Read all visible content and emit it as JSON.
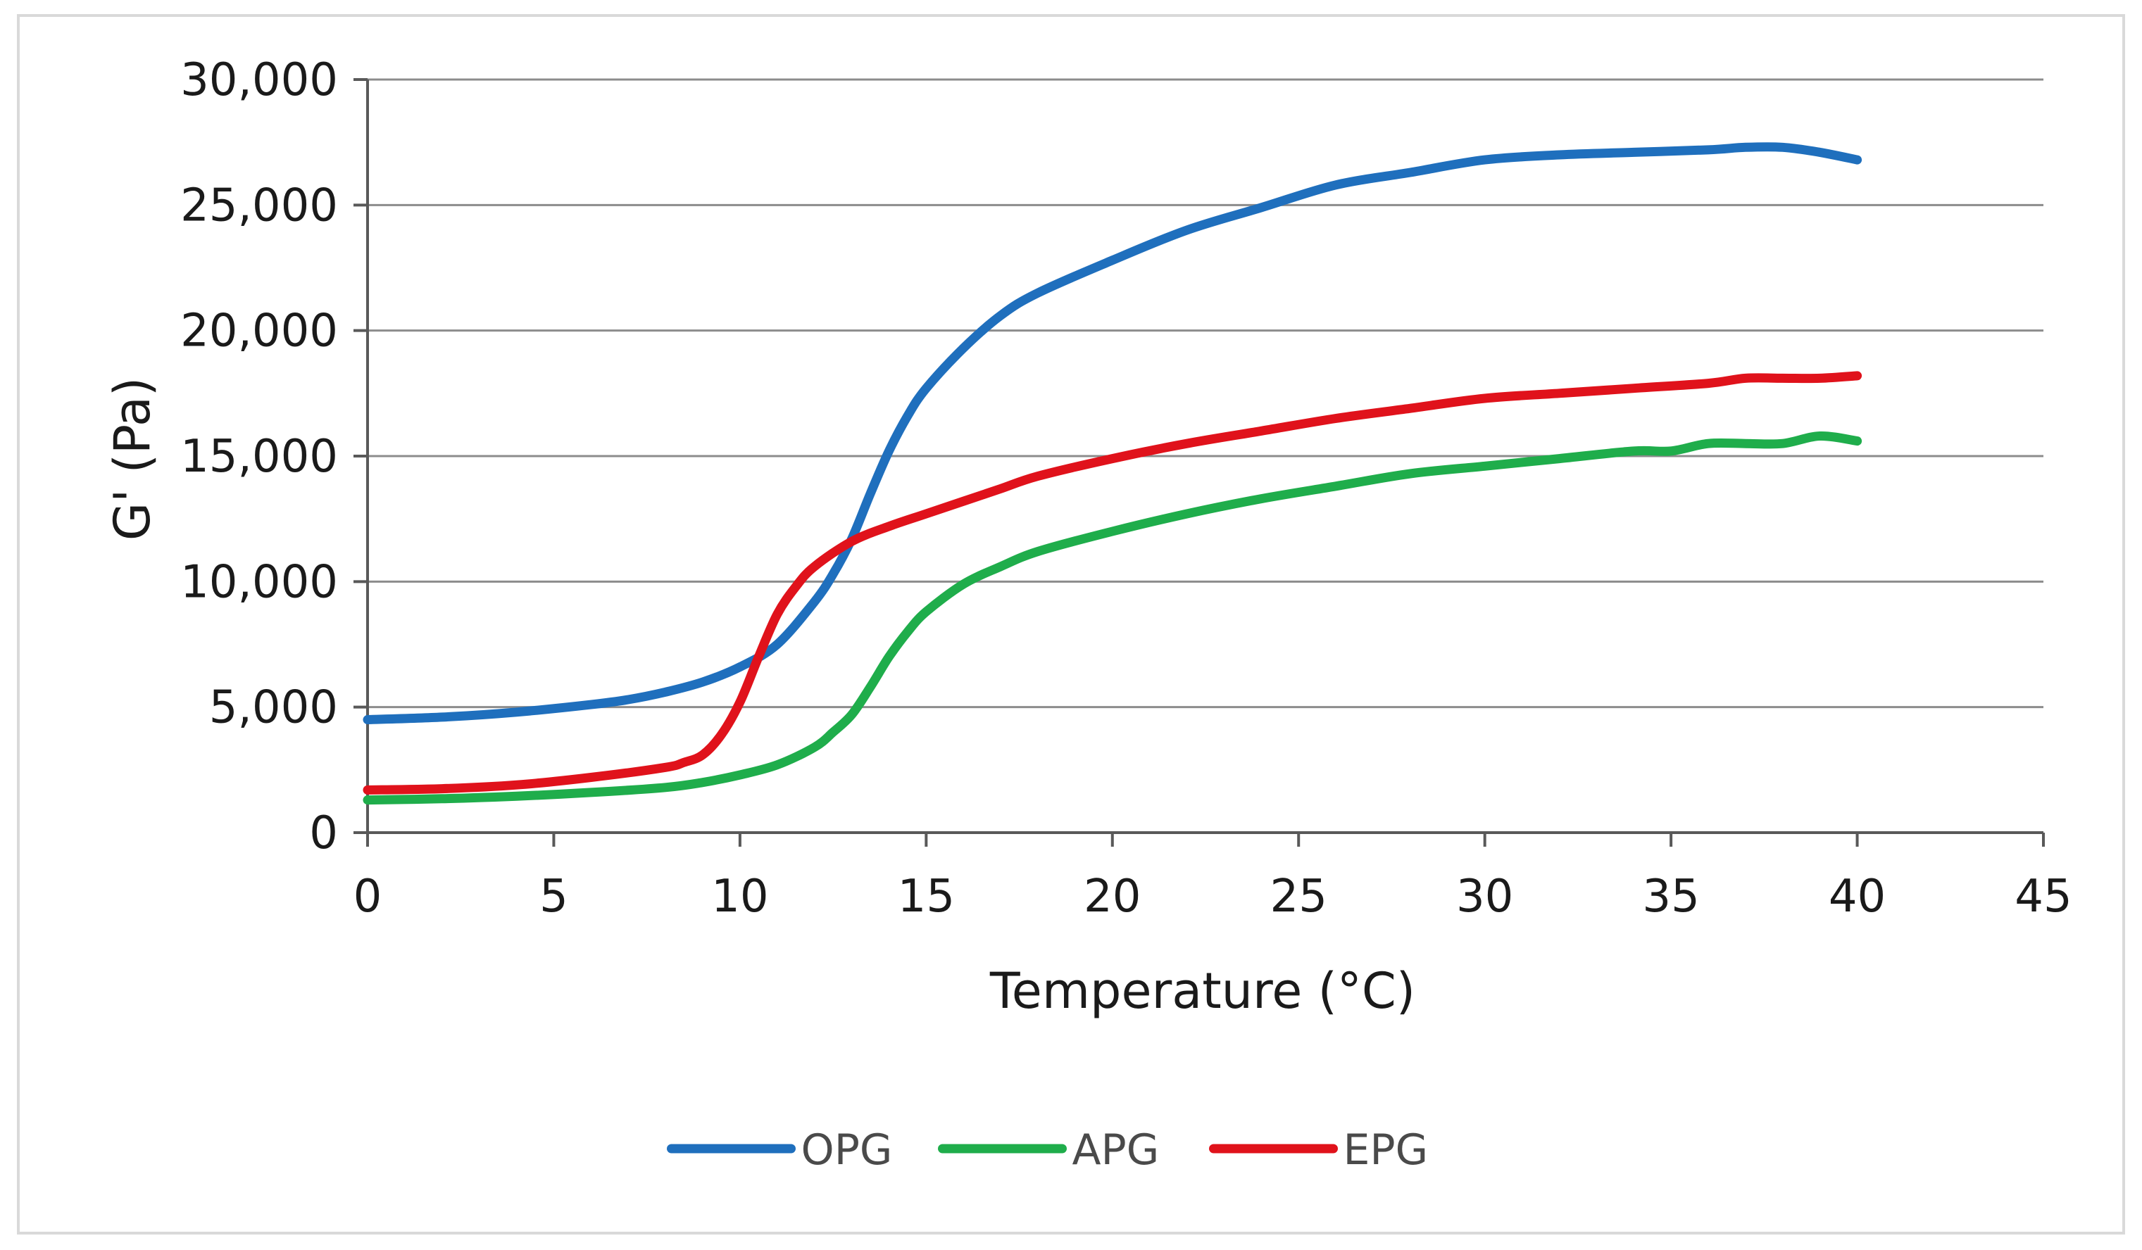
{
  "chart_data": {
    "type": "line",
    "title": "",
    "xlabel": "Temperature (°C)",
    "ylabel": "G' (Pa)",
    "xlim": [
      0,
      45
    ],
    "ylim": [
      0,
      30000
    ],
    "xticks": [
      0,
      5,
      10,
      15,
      20,
      25,
      30,
      35,
      40,
      45
    ],
    "xtick_labels": [
      "0",
      "5",
      "10",
      "15",
      "20",
      "25",
      "30",
      "35",
      "40",
      "45"
    ],
    "yticks": [
      0,
      5000,
      10000,
      15000,
      20000,
      25000,
      30000
    ],
    "ytick_labels": [
      "0",
      "5,000",
      "10,000",
      "15,000",
      "20,000",
      "25,000",
      "30,000"
    ],
    "grid": "horizontal",
    "legend": "bottom",
    "series": [
      {
        "name": "OPG",
        "color": "#1f6fbd",
        "x": [
          0,
          2,
          4,
          6,
          7,
          8,
          9,
          10,
          11,
          12,
          12.5,
          13,
          13.5,
          14,
          14.5,
          15,
          16,
          17,
          18,
          20,
          22,
          24,
          26,
          28,
          30,
          32,
          34,
          36,
          37,
          38,
          39,
          40
        ],
        "y": [
          4500,
          4600,
          4800,
          5100,
          5300,
          5600,
          6000,
          6600,
          7500,
          9200,
          10300,
          11700,
          13500,
          15200,
          16600,
          17700,
          19300,
          20600,
          21500,
          22800,
          24000,
          24900,
          25800,
          26300,
          26800,
          27000,
          27100,
          27200,
          27300,
          27300,
          27100,
          26800
        ]
      },
      {
        "name": "APG",
        "color": "#1fad4b",
        "x": [
          0,
          2,
          4,
          6,
          8,
          9,
          10,
          11,
          12,
          12.5,
          13,
          13.5,
          14,
          14.5,
          15,
          16,
          17,
          18,
          20,
          22,
          24,
          26,
          28,
          30,
          32,
          34,
          35,
          36,
          37,
          38,
          39,
          40
        ],
        "y": [
          1300,
          1350,
          1450,
          1600,
          1800,
          2000,
          2300,
          2700,
          3400,
          4000,
          4700,
          5800,
          7000,
          8000,
          8800,
          9900,
          10600,
          11200,
          12000,
          12700,
          13300,
          13800,
          14300,
          14600,
          14900,
          15200,
          15200,
          15500,
          15500,
          15500,
          15800,
          15600
        ]
      },
      {
        "name": "EPG",
        "color": "#e0121b",
        "x": [
          0,
          2,
          4,
          6,
          8,
          8.5,
          9,
          9.5,
          10,
          10.5,
          11,
          11.5,
          12,
          13,
          14,
          15,
          16,
          17,
          18,
          20,
          22,
          24,
          26,
          28,
          30,
          32,
          34,
          36,
          37,
          38,
          39,
          40
        ],
        "y": [
          1700,
          1750,
          1900,
          2200,
          2600,
          2800,
          3100,
          3900,
          5200,
          7000,
          8700,
          9800,
          10600,
          11600,
          12200,
          12700,
          13200,
          13700,
          14200,
          14900,
          15500,
          16000,
          16500,
          16900,
          17300,
          17500,
          17700,
          17900,
          18100,
          18100,
          18100,
          18200
        ]
      }
    ]
  }
}
